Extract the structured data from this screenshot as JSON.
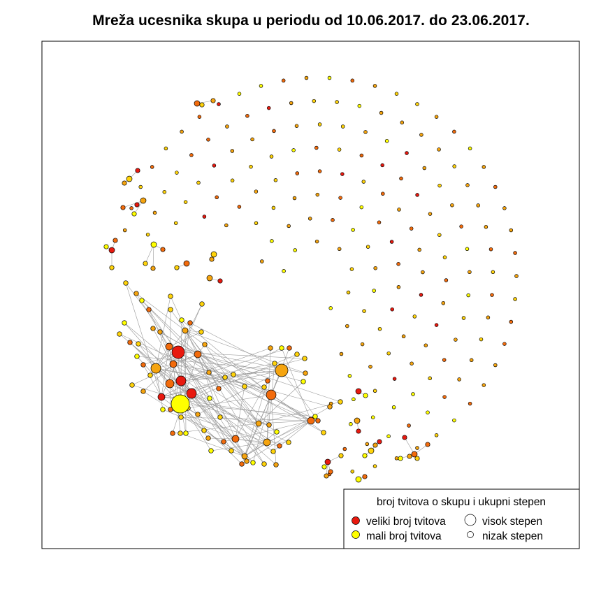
{
  "title": "Mreža ucesnika skupa u periodu od 10.06.2017. do 23.06.2017.",
  "legend": {
    "title": "broj tvitova o skupu i ukupni stepen",
    "items": [
      {
        "label": "veliki broj tvitova",
        "color": "#e8190f"
      },
      {
        "label": "mali broj tvitova",
        "color": "#ffff00"
      },
      {
        "label": "visok stepen"
      },
      {
        "label": "nizak stepen"
      }
    ]
  },
  "colors": {
    "high": "#e8190f",
    "mid_high": "#f26b0c",
    "mid": "#f5a40f",
    "low": "#ffd30a",
    "lowest": "#ffff00",
    "edge": "#9a9a9a"
  }
}
